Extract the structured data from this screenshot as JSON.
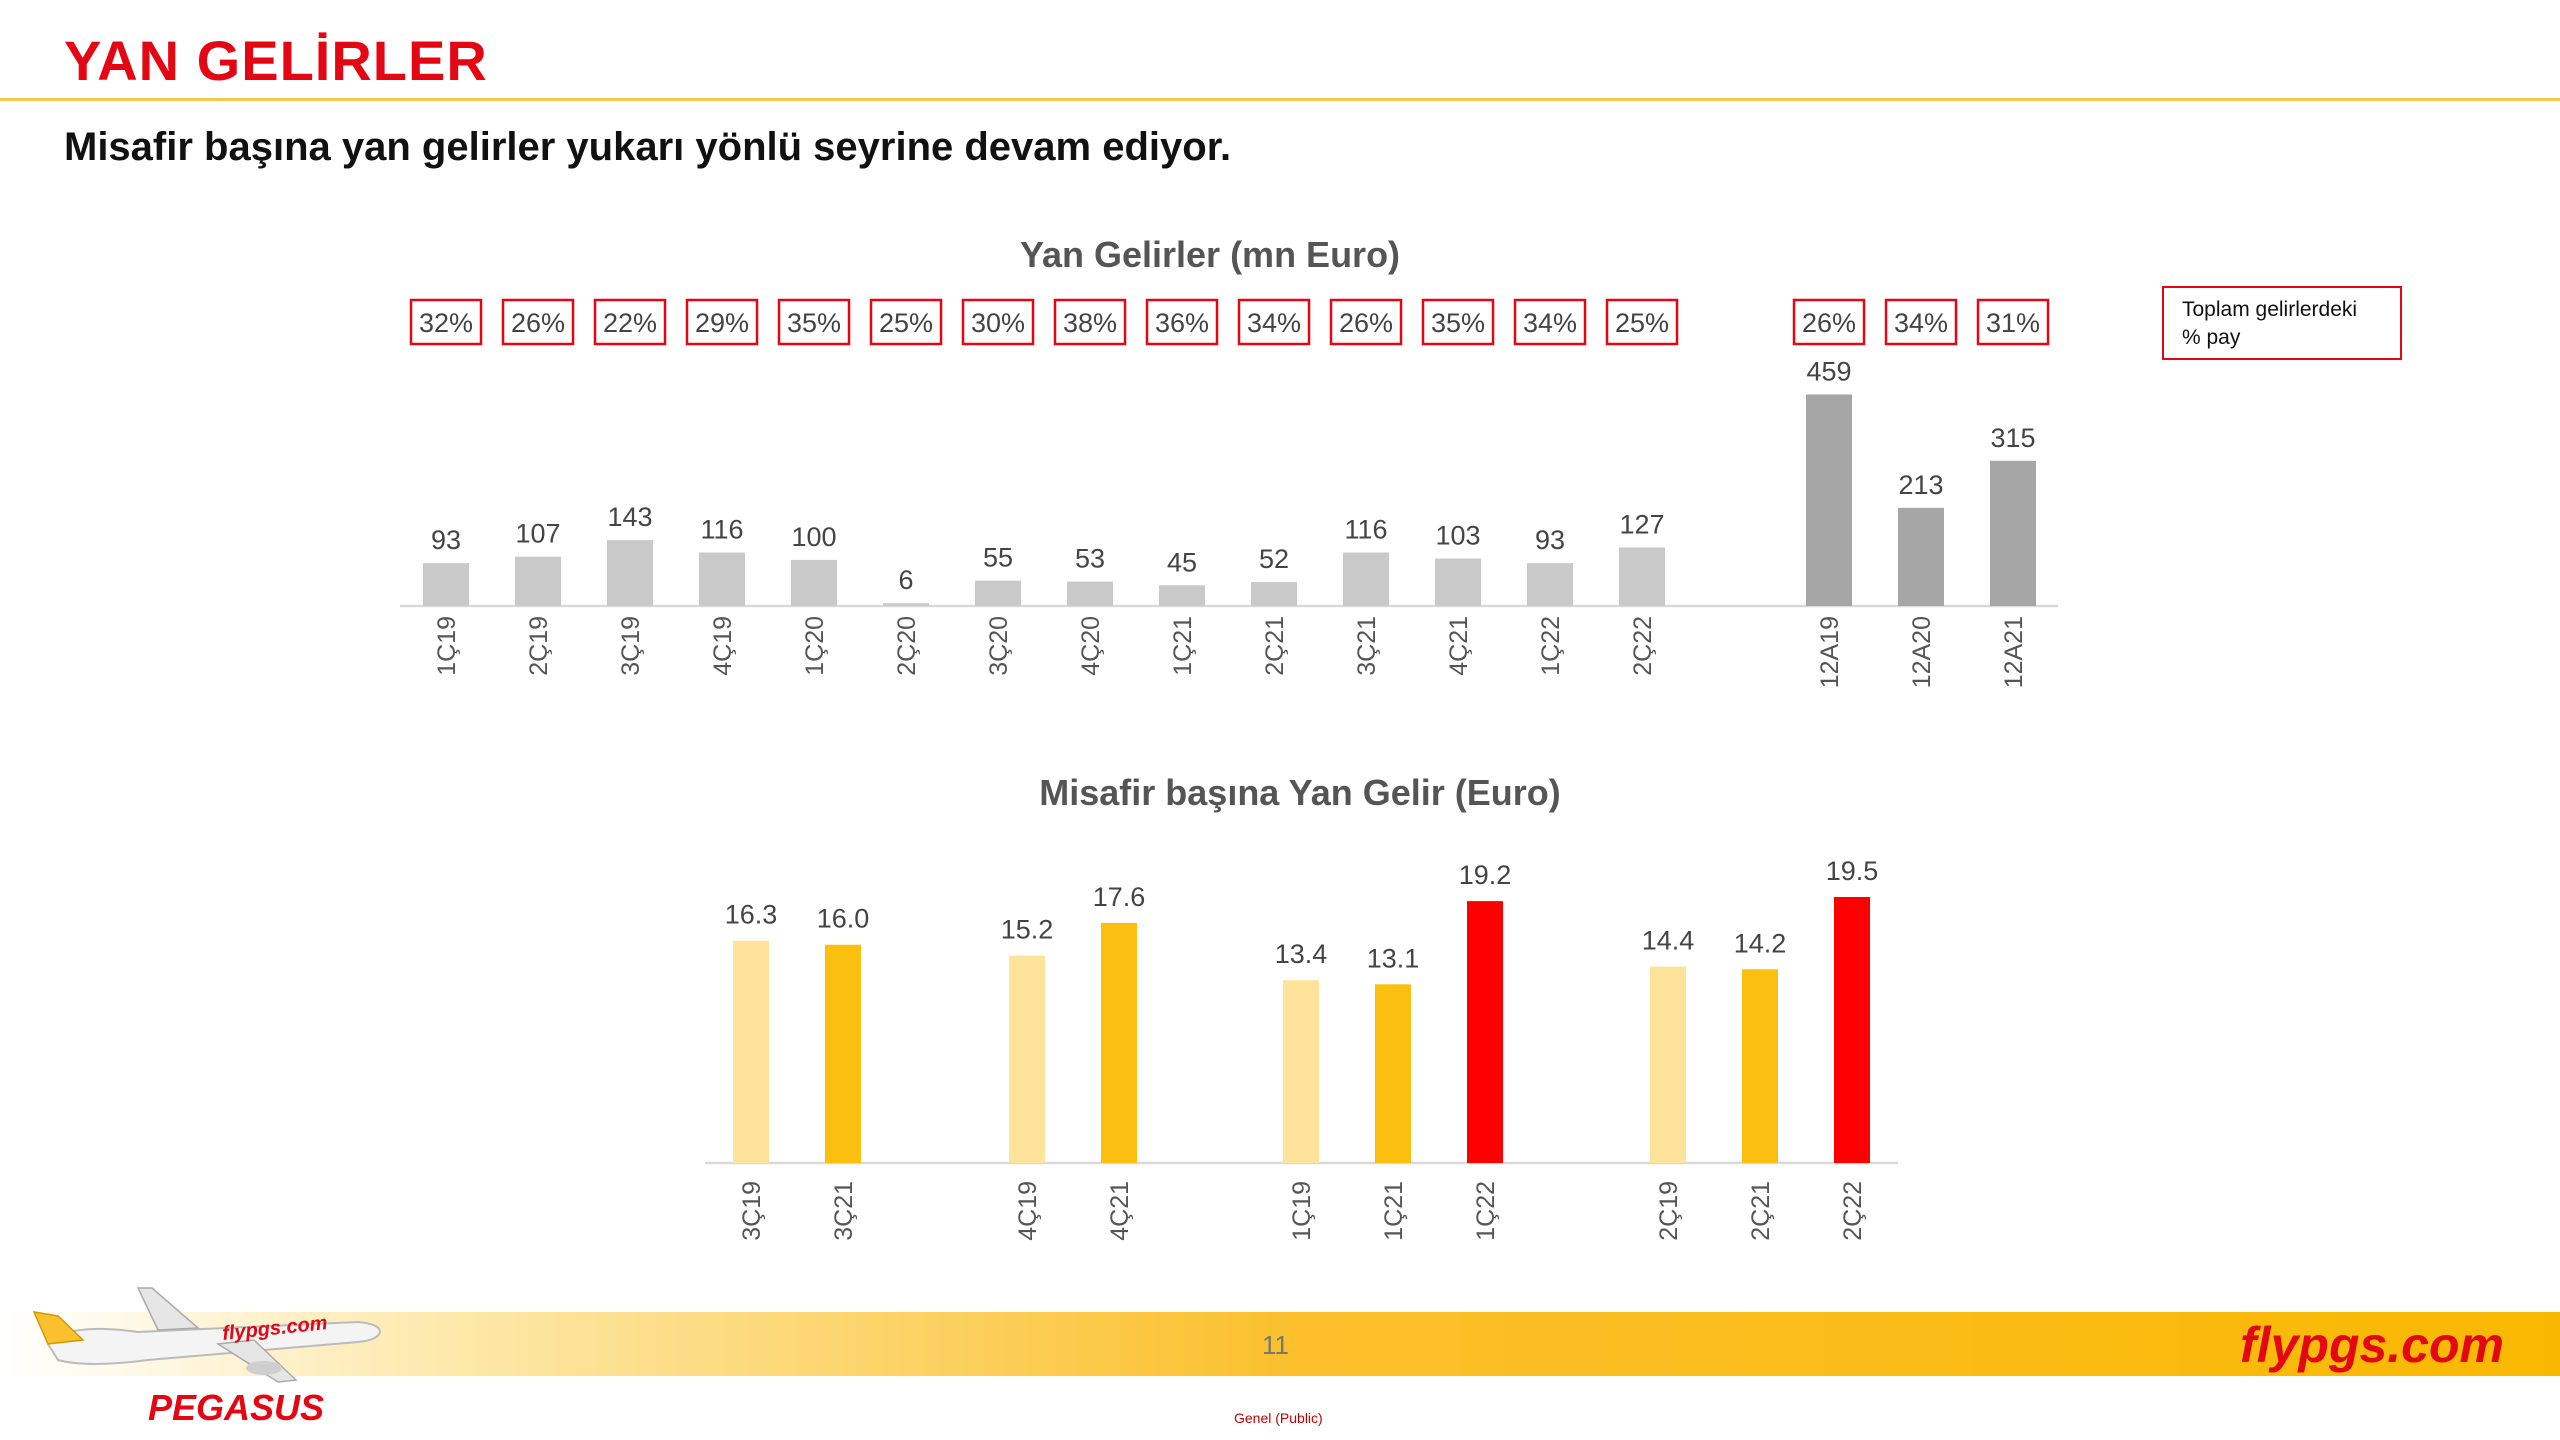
{
  "header": {
    "title": "YAN GELİRLER",
    "subtitle": "Misafir başına yan gelirler yukarı yönlü seyrine devam ediyor."
  },
  "legend": {
    "line1": "Toplam gelirlerdeki",
    "line2": "% pay"
  },
  "footer": {
    "page_number": "11",
    "brand": "flypgs.com",
    "classification": "Genel (Public)"
  },
  "logo": {
    "brand_name": "PEGASUS",
    "tail_text": "flypgs.com"
  },
  "colors": {
    "accent": "#e30613",
    "gold": "#f7c948",
    "bar_quarter": "#c9c9c9",
    "bar_annual": "#a6a6a6",
    "year_2019": "#fde49a",
    "year_2021": "#fbbf0f",
    "year_2022": "#ff0000",
    "share_box": "#e30613"
  },
  "chart_data": [
    {
      "type": "bar",
      "title": "Yan Gelirler  (mn Euro)",
      "categories": [
        "1Ç19",
        "2Ç19",
        "3Ç19",
        "4Ç19",
        "1Ç20",
        "2Ç20",
        "3Ç20",
        "4Ç20",
        "1Ç21",
        "2Ç21",
        "3Ç21",
        "4Ç21",
        "1Ç22",
        "2Ç22",
        "12A19",
        "12A20",
        "12A21"
      ],
      "values": [
        93,
        107,
        143,
        116,
        100,
        6,
        55,
        53,
        45,
        52,
        116,
        103,
        93,
        127,
        459,
        213,
        315
      ],
      "share_labels": [
        "32%",
        "26%",
        "22%",
        "29%",
        "35%",
        "25%",
        "30%",
        "38%",
        "36%",
        "34%",
        "26%",
        "35%",
        "34%",
        "25%",
        "26%",
        "34%",
        "31%"
      ],
      "ylim": [
        0,
        460
      ],
      "grid": false
    },
    {
      "type": "bar",
      "title": "Misafir başına Yan Gelir (Euro)",
      "groups": [
        {
          "bars": [
            {
              "category": "3Ç19",
              "value": 16.3,
              "label": "16.3",
              "year": "2019"
            },
            {
              "category": "3Ç21",
              "value": 16.0,
              "label": "16.0",
              "year": "2021"
            }
          ]
        },
        {
          "bars": [
            {
              "category": "4Ç19",
              "value": 15.2,
              "label": "15.2",
              "year": "2019"
            },
            {
              "category": "4Ç21",
              "value": 17.6,
              "label": "17.6",
              "year": "2021"
            }
          ]
        },
        {
          "bars": [
            {
              "category": "1Ç19",
              "value": 13.4,
              "label": "13.4",
              "year": "2019"
            },
            {
              "category": "1Ç21",
              "value": 13.1,
              "label": "13.1",
              "year": "2021"
            },
            {
              "category": "1Ç22",
              "value": 19.2,
              "label": "19.2",
              "year": "2022"
            }
          ]
        },
        {
          "bars": [
            {
              "category": "2Ç19",
              "value": 14.4,
              "label": "14.4",
              "year": "2019"
            },
            {
              "category": "2Ç21",
              "value": 14.2,
              "label": "14.2",
              "year": "2021"
            },
            {
              "category": "2Ç22",
              "value": 19.5,
              "label": "19.5",
              "year": "2022"
            }
          ]
        }
      ],
      "ylim": [
        0,
        19.5
      ],
      "grid": false
    }
  ]
}
